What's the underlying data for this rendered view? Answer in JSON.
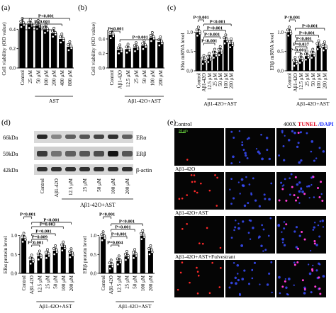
{
  "panels": {
    "a": {
      "letter": "(a)",
      "ylabel": "Cell viability (OD value)",
      "group_label": "AST",
      "xticks": [
        "Control",
        "25 μM",
        "50 μM",
        "100 μM",
        "200 μM",
        "400 μM",
        "800 μM"
      ]
    },
    "b": {
      "letter": "(b)",
      "ylabel": "Cell viability (OD value)",
      "group_label": "Aβ1-42O+AST",
      "xticks": [
        "Control",
        "Aβ1-42O",
        "12.5 μM",
        "25 μM",
        "50 μM",
        "100 μM",
        "200 μM"
      ]
    },
    "c": {
      "letter": "(c)",
      "group_label": "Aβ1-42O+AST",
      "xticks": [
        "Control",
        "Aβ1-42O",
        "12.5 μM",
        "25 μM",
        "50 μM",
        "100 μM",
        "200 μM"
      ]
    },
    "d": {
      "letter": "(d)",
      "group_label": "Aβ1-42O+AST",
      "blot_kda": [
        "66kDa",
        "59kDa",
        "42kDa"
      ],
      "blot_names": [
        "ERα",
        "ERβ",
        "β-actin"
      ],
      "lanes": [
        "Control",
        "Aβ1-42O",
        "12.5 μM",
        "25 μM",
        "50 μM",
        "100 μM",
        "200 μM"
      ]
    },
    "e": {
      "letter": "(e)",
      "magnification": "400X",
      "stain_red": "TUNEL",
      "stain_blue": "/DAPI",
      "scale_bar": "50 μm",
      "rows": [
        "Control",
        "Aβ1-42O",
        "Aβ1-42O+AST",
        "Aβ1-42O+AST+Fulvestrant"
      ]
    }
  },
  "colors": {
    "bar": "#000000",
    "point": "#ffffff",
    "fluor_bg": "#050505",
    "dapi": "#3a4dff",
    "tunel": "#ff2a2a",
    "merge": "#ff3bd6"
  },
  "chart_data": [
    {
      "id": "a",
      "type": "bar",
      "title": "",
      "xlabel": "",
      "ylabel": "Cell viability (OD value)",
      "categories": [
        "Control",
        "25 μM",
        "50 μM",
        "100 μM",
        "200 μM",
        "400 μM",
        "800 μM"
      ],
      "values": [
        0.46,
        0.45,
        0.44,
        0.4,
        0.36,
        0.3,
        0.22
      ],
      "ylim": [
        0,
        0.6
      ],
      "yticks": [
        "0.0",
        "0.2",
        "0.4",
        "0.6"
      ],
      "annotations": [
        "P<0.001",
        "P<0.001",
        "P=0.027"
      ]
    },
    {
      "id": "b",
      "type": "bar",
      "title": "",
      "xlabel": "",
      "ylabel": "Cell viability (OD value)",
      "categories": [
        "Control",
        "Aβ1-42O",
        "12.5 μM",
        "25 μM",
        "50 μM",
        "100 μM",
        "200 μM"
      ],
      "values": [
        0.46,
        0.25,
        0.26,
        0.28,
        0.31,
        0.42,
        0.36
      ],
      "ylim": [
        0,
        0.8
      ],
      "yticks": [
        "0.0",
        "0.2",
        "0.4",
        "0.6",
        "0.8"
      ],
      "annotations": [
        "P<0.001",
        "P<0.001"
      ]
    },
    {
      "id": "c1",
      "type": "bar",
      "title": "",
      "xlabel": "",
      "ylabel": "ERα mRNA level",
      "categories": [
        "Control",
        "Aβ1-42O",
        "12.5 μM",
        "25 μM",
        "50 μM",
        "100 μM",
        "200 μM"
      ],
      "values": [
        1.0,
        0.27,
        0.32,
        0.43,
        0.5,
        0.8,
        0.7
      ],
      "ylim": [
        0,
        1.5
      ],
      "yticks": [
        "0.0",
        "0.5",
        "1.0",
        "1.5"
      ],
      "annotations": [
        "P<0.001",
        "P<0.001",
        "P<0.001",
        "P<0.001",
        "P<0.001"
      ]
    },
    {
      "id": "c2",
      "type": "bar",
      "title": "",
      "xlabel": "",
      "ylabel": "ERβ mRNA level",
      "categories": [
        "Control",
        "Aβ1-42O",
        "12.5 μM",
        "25 μM",
        "50 μM",
        "100 μM",
        "200 μM"
      ],
      "values": [
        1.0,
        0.22,
        0.3,
        0.38,
        0.43,
        0.65,
        0.62
      ],
      "ylim": [
        0,
        1.5
      ],
      "yticks": [
        "0.0",
        "0.5",
        "1.0",
        "1.5"
      ],
      "annotations": [
        "P<0.001",
        "P<0.001",
        "P<0.001",
        "P<0.001",
        "P=0.037",
        "P<0.001"
      ]
    },
    {
      "id": "d1",
      "type": "bar",
      "title": "",
      "xlabel": "",
      "ylabel": "ERα protein level",
      "categories": [
        "Control",
        "Aβ1-42O",
        "12.5 μM",
        "25 μM",
        "50 μM",
        "100 μM",
        "200 μM"
      ],
      "values": [
        0.93,
        0.35,
        0.46,
        0.5,
        0.6,
        0.7,
        0.52
      ],
      "ylim": [
        0,
        1.5
      ],
      "yticks": [
        "0.0",
        "0.5",
        "1.0",
        "1.5"
      ],
      "annotations": [
        "P<0.001",
        "P<0.001",
        "P=0.003",
        "P<0.001",
        "P=0.009",
        "P<0.001"
      ]
    },
    {
      "id": "d2",
      "type": "bar",
      "title": "",
      "xlabel": "",
      "ylabel": "ERβ protein level",
      "categories": [
        "Control",
        "Aβ1-42O",
        "12.5 μM",
        "25 μM",
        "50 μM",
        "100 μM",
        "200 μM"
      ],
      "values": [
        0.97,
        0.22,
        0.33,
        0.45,
        0.5,
        1.0,
        0.6
      ],
      "ylim": [
        0,
        1.5
      ],
      "yticks": [
        "0.0",
        "0.5",
        "1.0",
        "1.5"
      ],
      "annotations": [
        "P<0.001",
        "P<0.001",
        "P<0.001",
        "P<0.001",
        "P=0.004"
      ]
    }
  ]
}
